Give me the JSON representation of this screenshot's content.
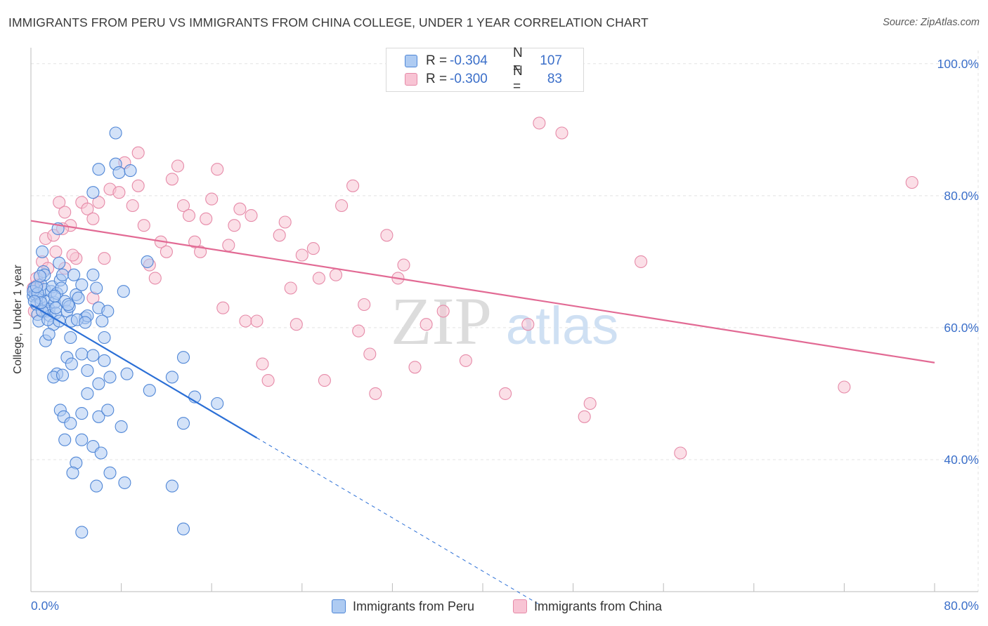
{
  "title": "IMMIGRANTS FROM PERU VS IMMIGRANTS FROM CHINA COLLEGE, UNDER 1 YEAR CORRELATION CHART",
  "source": "Source: ZipAtlas.com",
  "watermark": {
    "zip": "ZIP",
    "atlas": "atlas"
  },
  "stats": {
    "r_label": "R =",
    "n_label": "N =",
    "rows": [
      {
        "r": "-0.304",
        "n": "107"
      },
      {
        "r": "-0.300",
        "n": "83"
      }
    ]
  },
  "legend": {
    "peru": "Immigrants from Peru",
    "china": "Immigrants from China"
  },
  "colors": {
    "peru_fill": "#aecbf2",
    "peru_stroke": "#4f86d6",
    "peru_line": "#2b6fd6",
    "china_fill": "#f8c4d4",
    "china_stroke": "#e68aa8",
    "china_line": "#e26a94",
    "tick_label": "#3b6fc9",
    "grid": "#e3e3e3"
  },
  "chart_data": {
    "type": "scatter",
    "title": "IMMIGRANTS FROM PERU VS IMMIGRANTS FROM CHINA COLLEGE, UNDER 1 YEAR CORRELATION CHART",
    "xlabel": "",
    "ylabel": "College, Under 1 year",
    "xlim": [
      0,
      80
    ],
    "ylim": [
      20,
      102
    ],
    "x_tick_labels": [
      "0.0%",
      "80.0%"
    ],
    "y_ticks": [
      100,
      80,
      60,
      40
    ],
    "y_tick_labels": [
      "100.0%",
      "80.0%",
      "60.0%",
      "40.0%"
    ],
    "grid": true,
    "legend_position": "bottom-center",
    "series": [
      {
        "name": "Immigrants from Peru",
        "r": -0.304,
        "n": 107,
        "trend": {
          "x0": 0.0,
          "y0": 63.5,
          "x1": 20.0,
          "y1": 43.3,
          "dashed_to_x": 45.0
        },
        "points": [
          [
            0.2,
            64.8
          ],
          [
            0.3,
            66.0
          ],
          [
            0.4,
            65.0
          ],
          [
            0.5,
            63.5
          ],
          [
            0.6,
            62.0
          ],
          [
            0.7,
            61.0
          ],
          [
            0.8,
            64.5
          ],
          [
            0.9,
            66.5
          ],
          [
            1.0,
            71.5
          ],
          [
            1.1,
            68.5
          ],
          [
            1.2,
            65.8
          ],
          [
            1.3,
            63.0
          ],
          [
            1.4,
            62.5
          ],
          [
            1.5,
            64.0
          ],
          [
            1.6,
            62.8
          ],
          [
            1.7,
            61.8
          ],
          [
            1.8,
            65.5
          ],
          [
            1.9,
            66.2
          ],
          [
            2.0,
            60.5
          ],
          [
            2.1,
            63.8
          ],
          [
            2.2,
            62.2
          ],
          [
            2.3,
            65.2
          ],
          [
            2.4,
            75.0
          ],
          [
            2.5,
            69.8
          ],
          [
            2.6,
            67.2
          ],
          [
            2.7,
            66.0
          ],
          [
            2.8,
            68.0
          ],
          [
            3.0,
            64.0
          ],
          [
            3.2,
            62.5
          ],
          [
            3.4,
            63.2
          ],
          [
            3.6,
            61.0
          ],
          [
            3.8,
            68.0
          ],
          [
            4.0,
            65.0
          ],
          [
            4.2,
            64.5
          ],
          [
            4.5,
            66.5
          ],
          [
            4.8,
            61.5
          ],
          [
            5.0,
            61.8
          ],
          [
            5.5,
            68.0
          ],
          [
            5.8,
            66.0
          ],
          [
            6.0,
            63.0
          ],
          [
            2.3,
            53.0
          ],
          [
            3.2,
            55.5
          ],
          [
            3.6,
            54.5
          ],
          [
            4.5,
            56.0
          ],
          [
            5.0,
            53.5
          ],
          [
            5.5,
            55.8
          ],
          [
            6.5,
            55.0
          ],
          [
            1.3,
            58.0
          ],
          [
            2.0,
            52.5
          ],
          [
            3.5,
            58.5
          ],
          [
            6.5,
            58.5
          ],
          [
            5.0,
            50.0
          ],
          [
            6.0,
            51.5
          ],
          [
            7.0,
            52.5
          ],
          [
            8.5,
            53.0
          ],
          [
            10.5,
            50.5
          ],
          [
            12.5,
            52.5
          ],
          [
            13.5,
            55.5
          ],
          [
            14.5,
            49.5
          ],
          [
            16.5,
            48.5
          ],
          [
            2.6,
            47.5
          ],
          [
            2.9,
            46.5
          ],
          [
            3.5,
            45.5
          ],
          [
            4.5,
            47.0
          ],
          [
            6.0,
            46.5
          ],
          [
            6.8,
            47.5
          ],
          [
            8.0,
            45.0
          ],
          [
            13.5,
            45.5
          ],
          [
            3.0,
            43.0
          ],
          [
            4.5,
            43.0
          ],
          [
            5.5,
            42.0
          ],
          [
            6.2,
            41.0
          ],
          [
            4.0,
            39.5
          ],
          [
            3.7,
            38.0
          ],
          [
            7.0,
            38.0
          ],
          [
            5.8,
            36.0
          ],
          [
            8.3,
            36.5
          ],
          [
            12.5,
            36.0
          ],
          [
            4.5,
            29.0
          ],
          [
            13.5,
            29.5
          ],
          [
            7.5,
            89.5
          ],
          [
            7.5,
            84.8
          ],
          [
            7.8,
            83.5
          ],
          [
            8.8,
            83.8
          ],
          [
            6.0,
            84.0
          ],
          [
            5.5,
            80.5
          ],
          [
            10.3,
            70.0
          ],
          [
            8.2,
            65.5
          ],
          [
            6.8,
            62.5
          ],
          [
            6.3,
            61.0
          ],
          [
            2.8,
            52.8
          ],
          [
            0.2,
            65.5
          ],
          [
            0.6,
            65.2
          ],
          [
            1.0,
            62.5
          ],
          [
            1.5,
            61.2
          ],
          [
            2.5,
            61.0
          ],
          [
            0.9,
            63.8
          ],
          [
            1.2,
            68.0
          ],
          [
            2.1,
            64.8
          ],
          [
            3.3,
            63.5
          ],
          [
            4.1,
            61.2
          ],
          [
            1.6,
            59.0
          ],
          [
            0.5,
            66.2
          ],
          [
            0.3,
            64.0
          ],
          [
            0.8,
            67.8
          ],
          [
            2.2,
            63.0
          ],
          [
            4.8,
            60.8
          ]
        ]
      },
      {
        "name": "Immigrants from China",
        "r": -0.3,
        "n": 83,
        "trend": {
          "x0": 0.0,
          "y0": 76.2,
          "x1": 80.0,
          "y1": 54.7
        },
        "points": [
          [
            0.3,
            62.5
          ],
          [
            0.6,
            66.5
          ],
          [
            1.0,
            70.0
          ],
          [
            1.3,
            73.5
          ],
          [
            2.0,
            74.0
          ],
          [
            2.5,
            79.0
          ],
          [
            3.0,
            77.5
          ],
          [
            3.5,
            75.5
          ],
          [
            4.5,
            79.0
          ],
          [
            5.0,
            78.0
          ],
          [
            5.5,
            76.5
          ],
          [
            6.0,
            79.0
          ],
          [
            2.8,
            75.0
          ],
          [
            4.0,
            70.5
          ],
          [
            3.0,
            69.0
          ],
          [
            5.5,
            64.5
          ],
          [
            6.5,
            70.5
          ],
          [
            7.0,
            81.0
          ],
          [
            7.8,
            80.5
          ],
          [
            8.3,
            85.0
          ],
          [
            9.0,
            78.5
          ],
          [
            9.5,
            81.5
          ],
          [
            10.0,
            75.5
          ],
          [
            10.5,
            69.5
          ],
          [
            11.0,
            67.5
          ],
          [
            11.5,
            73.0
          ],
          [
            12.0,
            71.5
          ],
          [
            12.5,
            82.5
          ],
          [
            13.0,
            84.5
          ],
          [
            13.5,
            78.5
          ],
          [
            14.0,
            77.0
          ],
          [
            14.5,
            73.0
          ],
          [
            15.0,
            71.5
          ],
          [
            15.5,
            76.5
          ],
          [
            16.0,
            79.5
          ],
          [
            16.5,
            84.0
          ],
          [
            17.0,
            63.0
          ],
          [
            17.5,
            72.5
          ],
          [
            18.0,
            75.5
          ],
          [
            18.5,
            78.0
          ],
          [
            19.0,
            61.0
          ],
          [
            19.5,
            77.0
          ],
          [
            20.0,
            61.0
          ],
          [
            20.5,
            54.5
          ],
          [
            21.0,
            52.0
          ],
          [
            22.0,
            74.0
          ],
          [
            22.5,
            76.0
          ],
          [
            23.0,
            66.0
          ],
          [
            23.5,
            60.5
          ],
          [
            24.0,
            71.0
          ],
          [
            25.0,
            72.0
          ],
          [
            25.5,
            67.5
          ],
          [
            26.0,
            52.0
          ],
          [
            27.0,
            68.0
          ],
          [
            27.5,
            78.5
          ],
          [
            28.5,
            81.5
          ],
          [
            29.0,
            59.5
          ],
          [
            29.5,
            63.5
          ],
          [
            30.0,
            56.0
          ],
          [
            30.5,
            50.0
          ],
          [
            31.5,
            74.0
          ],
          [
            32.5,
            67.5
          ],
          [
            33.0,
            69.5
          ],
          [
            34.0,
            54.0
          ],
          [
            35.0,
            60.5
          ],
          [
            36.5,
            62.5
          ],
          [
            38.5,
            55.0
          ],
          [
            42.0,
            50.0
          ],
          [
            44.0,
            60.5
          ],
          [
            45.0,
            91.0
          ],
          [
            47.0,
            89.5
          ],
          [
            49.0,
            46.5
          ],
          [
            49.5,
            48.5
          ],
          [
            54.0,
            70.0
          ],
          [
            57.5,
            41.0
          ],
          [
            72.0,
            51.0
          ],
          [
            78.0,
            82.0
          ],
          [
            0.2,
            66.0
          ],
          [
            0.5,
            67.5
          ],
          [
            1.5,
            69.0
          ],
          [
            2.2,
            71.5
          ],
          [
            3.7,
            71.0
          ],
          [
            9.5,
            86.5
          ]
        ]
      }
    ]
  }
}
